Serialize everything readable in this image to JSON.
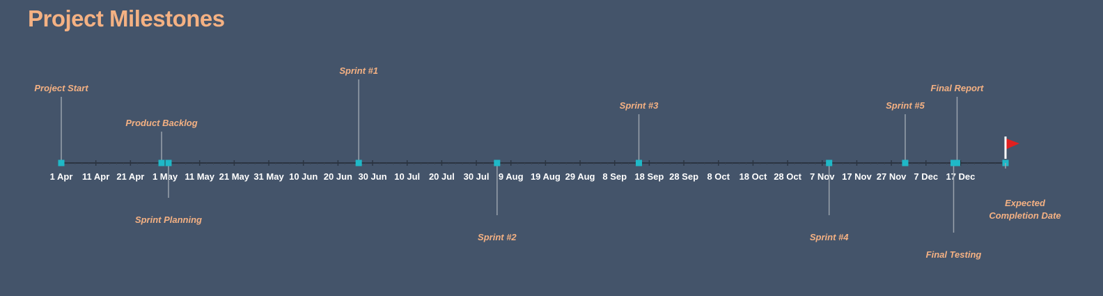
{
  "title": "Project Milestones",
  "colors": {
    "background": "#44546a",
    "accent": "#f4b183",
    "marker": "#1fb8c7",
    "leader": "#9aa3ad",
    "axis": "#2b3441",
    "flag": "#e02020",
    "tick_text": "#ffffff"
  },
  "chart_data": {
    "type": "timeline",
    "title": "Project Milestones",
    "x_range": [
      "2024-03-28",
      "2024-12-25"
    ],
    "ticks": [
      {
        "date": "2024-04-01",
        "label": "1 Apr"
      },
      {
        "date": "2024-04-11",
        "label": "11 Apr"
      },
      {
        "date": "2024-04-21",
        "label": "21 Apr"
      },
      {
        "date": "2024-05-01",
        "label": "1 May"
      },
      {
        "date": "2024-05-11",
        "label": "11 May"
      },
      {
        "date": "2024-05-21",
        "label": "21 May"
      },
      {
        "date": "2024-05-31",
        "label": "31 May"
      },
      {
        "date": "2024-06-10",
        "label": "10 Jun"
      },
      {
        "date": "2024-06-20",
        "label": "20 Jun"
      },
      {
        "date": "2024-06-30",
        "label": "30 Jun"
      },
      {
        "date": "2024-07-10",
        "label": "10 Jul"
      },
      {
        "date": "2024-07-20",
        "label": "20 Jul"
      },
      {
        "date": "2024-07-30",
        "label": "30 Jul"
      },
      {
        "date": "2024-08-09",
        "label": "9 Aug"
      },
      {
        "date": "2024-08-19",
        "label": "19 Aug"
      },
      {
        "date": "2024-08-29",
        "label": "29 Aug"
      },
      {
        "date": "2024-09-08",
        "label": "8 Sep"
      },
      {
        "date": "2024-09-18",
        "label": "18 Sep"
      },
      {
        "date": "2024-09-28",
        "label": "28 Sep"
      },
      {
        "date": "2024-10-08",
        "label": "8 Oct"
      },
      {
        "date": "2024-10-18",
        "label": "18 Oct"
      },
      {
        "date": "2024-10-28",
        "label": "28 Oct"
      },
      {
        "date": "2024-11-07",
        "label": "7 Nov"
      },
      {
        "date": "2024-11-17",
        "label": "17 Nov"
      },
      {
        "date": "2024-11-27",
        "label": "27 Nov"
      },
      {
        "date": "2024-12-07",
        "label": "7 Dec"
      },
      {
        "date": "2024-12-17",
        "label": "17 Dec"
      }
    ],
    "milestones": [
      {
        "label": "Project Start",
        "date": "2024-04-01",
        "height": 95
      },
      {
        "label": "Product Backlog",
        "date": "2024-04-30",
        "height": 45
      },
      {
        "label": "Sprint Planning",
        "date": "2024-05-02",
        "height": -50
      },
      {
        "label": "Sprint #1",
        "date": "2024-06-26",
        "height": 120
      },
      {
        "label": "Sprint #2",
        "date": "2024-08-05",
        "height": -75
      },
      {
        "label": "Sprint #3",
        "date": "2024-09-15",
        "height": 70
      },
      {
        "label": "Sprint #4",
        "date": "2024-11-09",
        "height": -75
      },
      {
        "label": "Sprint #5",
        "date": "2024-12-01",
        "height": 70
      },
      {
        "label": "Final Report",
        "date": "2024-12-16",
        "height": 95
      },
      {
        "label": "Final Testing",
        "date": "2024-12-15",
        "height": -100
      }
    ],
    "completion": {
      "label": [
        "Expected",
        "Completion Date"
      ],
      "date": "2024-12-30"
    }
  }
}
